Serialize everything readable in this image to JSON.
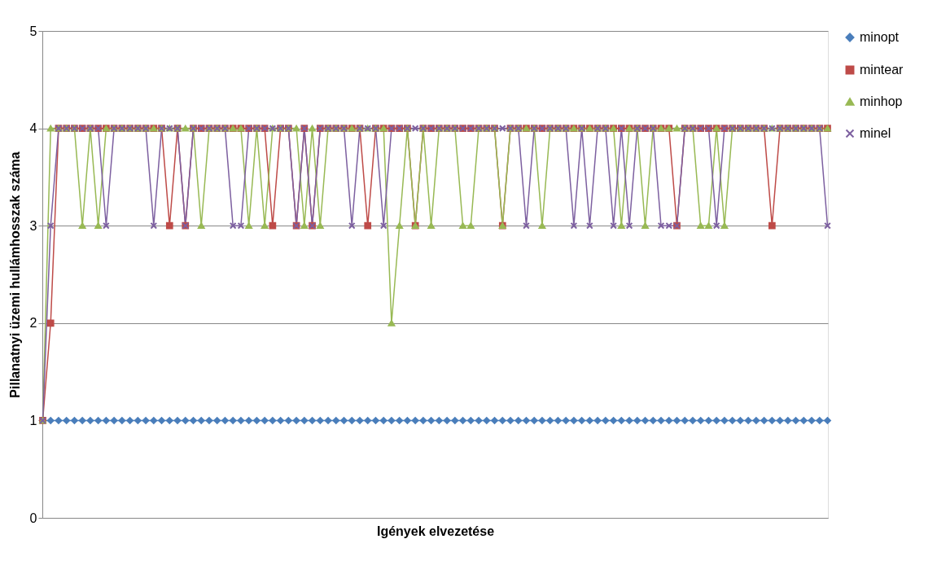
{
  "chart_data": {
    "type": "line",
    "xlabel": "Igények elvezetése",
    "ylabel": "Pillanatnyi üzemi hullámhosszak száma",
    "categories": [
      null,
      null,
      null,
      null,
      null,
      null,
      null,
      null,
      null,
      null,
      null,
      null,
      null,
      null,
      null,
      null,
      null,
      null,
      null,
      null,
      null,
      null,
      null,
      null,
      null,
      null,
      null,
      null,
      null,
      null,
      null,
      null,
      null,
      null,
      null,
      null,
      null,
      null,
      null,
      null,
      null,
      null,
      null,
      null,
      null,
      null,
      null,
      null,
      null,
      null,
      null,
      null,
      null,
      null,
      null,
      null,
      null,
      null,
      null,
      null,
      null,
      null,
      null,
      null,
      null,
      null,
      null,
      null,
      null,
      null,
      null,
      null,
      null,
      null,
      null,
      null,
      null,
      null,
      null,
      null,
      null,
      null,
      null,
      null,
      null,
      null,
      null,
      null,
      null,
      null,
      null,
      null,
      null,
      null,
      null,
      null,
      null,
      null,
      null,
      null
    ],
    "ylim": [
      0,
      5
    ],
    "yticks": [
      0,
      1,
      2,
      3,
      4,
      5
    ],
    "grid": "y",
    "legend": "right",
    "tick_labels": "y",
    "series": [
      {
        "name": "minopt",
        "color": "#4a7ebb",
        "marker": "diamond",
        "values": [
          1,
          1,
          1,
          1,
          1,
          1,
          1,
          1,
          1,
          1,
          1,
          1,
          1,
          1,
          1,
          1,
          1,
          1,
          1,
          1,
          1,
          1,
          1,
          1,
          1,
          1,
          1,
          1,
          1,
          1,
          1,
          1,
          1,
          1,
          1,
          1,
          1,
          1,
          1,
          1,
          1,
          1,
          1,
          1,
          1,
          1,
          1,
          1,
          1,
          1,
          1,
          1,
          1,
          1,
          1,
          1,
          1,
          1,
          1,
          1,
          1,
          1,
          1,
          1,
          1,
          1,
          1,
          1,
          1,
          1,
          1,
          1,
          1,
          1,
          1,
          1,
          1,
          1,
          1,
          1,
          1,
          1,
          1,
          1,
          1,
          1,
          1,
          1,
          1,
          1,
          1,
          1,
          1,
          1,
          1,
          1,
          1,
          1,
          1,
          1
        ]
      },
      {
        "name": "mintear",
        "color": "#be4b48",
        "marker": "square",
        "values": [
          1,
          2,
          4,
          4,
          4,
          4,
          4,
          4,
          4,
          4,
          4,
          4,
          4,
          4,
          4,
          4,
          3,
          4,
          3,
          4,
          4,
          4,
          4,
          4,
          4,
          4,
          4,
          4,
          4,
          3,
          4,
          4,
          3,
          4,
          3,
          4,
          4,
          4,
          4,
          4,
          4,
          3,
          4,
          4,
          4,
          4,
          4,
          3,
          4,
          4,
          4,
          4,
          4,
          4,
          4,
          4,
          4,
          4,
          3,
          4,
          4,
          4,
          4,
          4,
          4,
          4,
          4,
          4,
          4,
          4,
          4,
          4,
          4,
          4,
          4,
          4,
          4,
          4,
          4,
          4,
          3,
          4,
          4,
          4,
          4,
          4,
          4,
          4,
          4,
          4,
          4,
          4,
          3,
          4,
          4,
          4,
          4,
          4,
          4,
          4
        ]
      },
      {
        "name": "minhop",
        "color": "#98b954",
        "marker": "triangle",
        "values": [
          1,
          4,
          4,
          4,
          4,
          3,
          4,
          3,
          4,
          4,
          4,
          4,
          4,
          4,
          4,
          4,
          4,
          4,
          4,
          4,
          3,
          4,
          4,
          4,
          4,
          4,
          3,
          4,
          3,
          4,
          4,
          4,
          4,
          3,
          4,
          3,
          4,
          4,
          4,
          4,
          4,
          4,
          4,
          4,
          2,
          3,
          4,
          3,
          4,
          3,
          4,
          4,
          4,
          3,
          3,
          4,
          4,
          4,
          3,
          4,
          4,
          4,
          4,
          3,
          4,
          4,
          4,
          4,
          4,
          4,
          4,
          4,
          4,
          3,
          4,
          4,
          3,
          4,
          4,
          4,
          4,
          4,
          4,
          3,
          3,
          4,
          3,
          4,
          4,
          4,
          4,
          4,
          4,
          4,
          4,
          4,
          4,
          4,
          4,
          4
        ]
      },
      {
        "name": "minel",
        "color": "#7d60a0",
        "marker": "cross",
        "values": [
          1,
          3,
          4,
          4,
          4,
          4,
          4,
          4,
          3,
          4,
          4,
          4,
          4,
          4,
          3,
          4,
          4,
          4,
          3,
          4,
          4,
          4,
          4,
          4,
          3,
          3,
          4,
          4,
          4,
          4,
          4,
          4,
          3,
          4,
          3,
          4,
          4,
          4,
          4,
          3,
          4,
          4,
          4,
          3,
          4,
          4,
          4,
          4,
          4,
          4,
          4,
          4,
          4,
          4,
          4,
          4,
          4,
          4,
          4,
          4,
          4,
          3,
          4,
          4,
          4,
          4,
          4,
          3,
          4,
          3,
          4,
          4,
          3,
          4,
          3,
          4,
          4,
          4,
          3,
          3,
          3,
          4,
          4,
          4,
          4,
          3,
          4,
          4,
          4,
          4,
          4,
          4,
          4,
          4,
          4,
          4,
          4,
          4,
          4,
          3
        ]
      }
    ]
  }
}
